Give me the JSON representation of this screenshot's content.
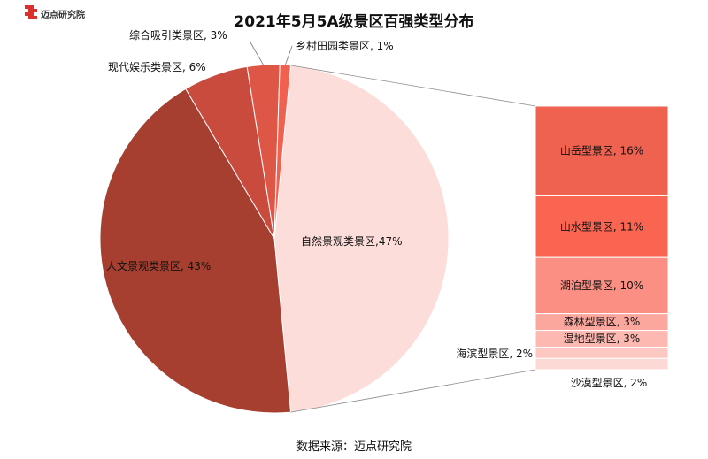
{
  "logo_text": "迈点研究院",
  "chart_data": {
    "type": "pie",
    "title": "2021年5月5A级景区百强类型分布",
    "source": "数据来源：迈点研究院",
    "pie_slices": [
      {
        "label": "自然景观类景区",
        "value": 47,
        "text": "自然景观类景区,47%",
        "color": "#fdddda"
      },
      {
        "label": "人文景观类景区",
        "value": 43,
        "text": "人文景观类景区, 43%",
        "color": "#a63f30"
      },
      {
        "label": "现代娱乐类景区",
        "value": 6,
        "text": "现代娱乐类景区, 6%",
        "color": "#c84b3e"
      },
      {
        "label": "综合吸引类景区",
        "value": 3,
        "text": "综合吸引类景区, 3%",
        "color": "#dd5646"
      },
      {
        "label": "乡村田园类景区",
        "value": 1,
        "text": "乡村田园类景区, 1%",
        "color": "#f06150"
      }
    ],
    "breakdown": {
      "parent": "自然景观类景区",
      "segments": [
        {
          "label": "山岳型景区",
          "value": 16,
          "text": "山岳型景区, 16%",
          "color": "#ef624f"
        },
        {
          "label": "山水型景区",
          "value": 11,
          "text": "山水型景区, 11%",
          "color": "#fa6552"
        },
        {
          "label": "湖泊型景区",
          "value": 10,
          "text": "湖泊型景区, 10%",
          "color": "#fc8f83"
        },
        {
          "label": "森林型景区",
          "value": 3,
          "text": "森林型景区, 3%",
          "color": "#fca79e"
        },
        {
          "label": "湿地型景区",
          "value": 3,
          "text": "湿地型景区, 3%",
          "color": "#fdb8b1"
        },
        {
          "label": "海滨型景区",
          "value": 2,
          "text": "海滨型景区, 2%",
          "color": "#fdc8c2"
        },
        {
          "label": "沙漠型景区",
          "value": 2,
          "text": "沙漠型景区, 2%",
          "color": "#fdd9d5"
        }
      ]
    }
  }
}
